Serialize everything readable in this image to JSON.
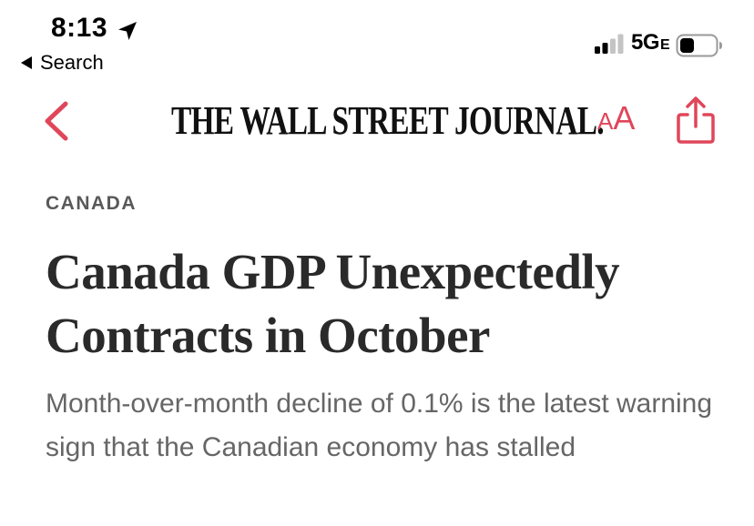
{
  "status_bar": {
    "time": "8:13",
    "back_app_label": "Search",
    "network": "5G",
    "network_suffix": "E"
  },
  "nav": {
    "masthead": "THE WALL STREET JOURNAL.",
    "text_size_small": "A",
    "text_size_large": "A"
  },
  "article": {
    "section": "CANADA",
    "headline": "Canada GDP Unexpectedly Contracts in October",
    "dek": "Month-over-month decline of 0.1% is the latest warning sign that the Canadian economy has stalled"
  },
  "colors": {
    "accent": "#e0465a",
    "headline": "#2a2a2a",
    "section": "#595959",
    "dek": "#666666"
  },
  "icons": {
    "location": "location-arrow-icon",
    "back_triangle": "back-triangle-icon",
    "signal": "cellular-signal-icon",
    "battery": "battery-icon",
    "nav_back": "chevron-left-icon",
    "share": "share-icon"
  }
}
